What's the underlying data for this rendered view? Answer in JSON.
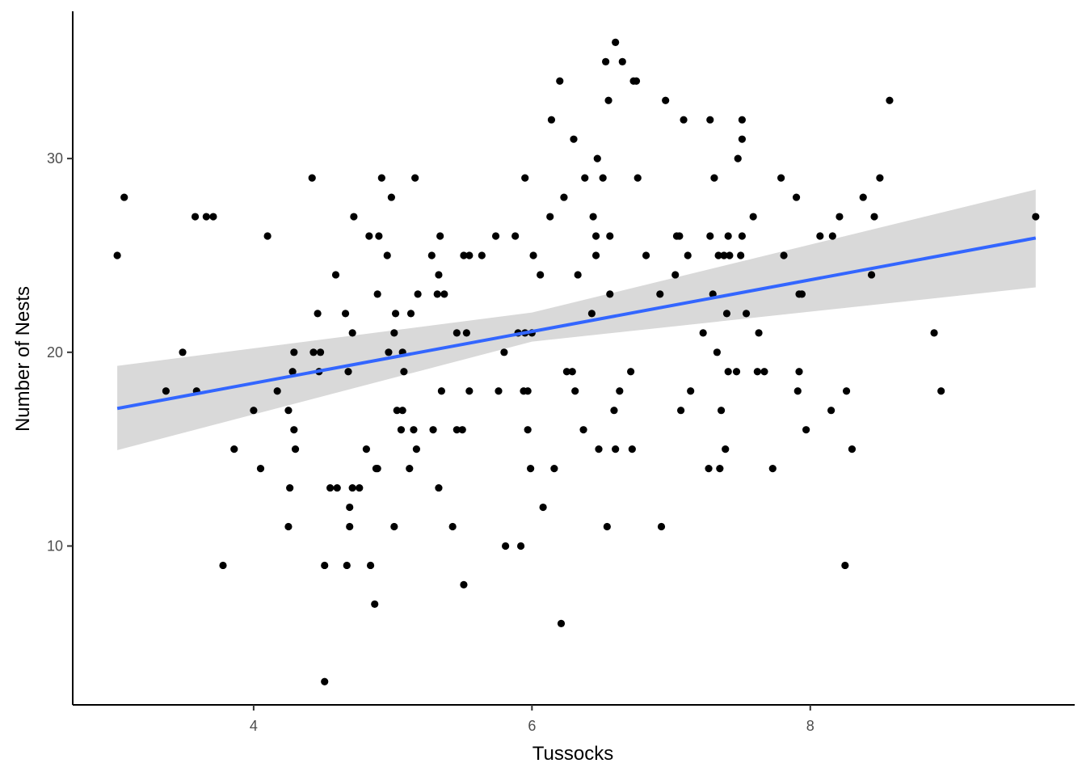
{
  "chart_data": {
    "type": "scatter",
    "xlabel": "Tussocks",
    "ylabel": "Number of Nests",
    "xlim": [
      2.7,
      9.9
    ],
    "ylim": [
      1.8,
      37.6
    ],
    "x_ticks": [
      4,
      6,
      8
    ],
    "y_ticks": [
      10,
      20,
      30
    ],
    "grid": false,
    "colors": {
      "points": "#000000",
      "trend_line": "#3366ff",
      "confidence_band": "#d9d9d9",
      "axis": "#000000",
      "tick_label": "#4d4d4d"
    },
    "trend_line": {
      "method": "lm",
      "points": [
        [
          3.02,
          17.1
        ],
        [
          9.62,
          25.9
        ]
      ],
      "ci_lower": [
        [
          3.02,
          14.95
        ],
        [
          6.0,
          20.55
        ],
        [
          9.62,
          23.35
        ]
      ],
      "ci_upper": [
        [
          3.02,
          19.3
        ],
        [
          6.0,
          22.05
        ],
        [
          9.62,
          28.4
        ]
      ]
    },
    "points": [
      [
        3.02,
        25
      ],
      [
        3.07,
        28
      ],
      [
        3.37,
        18
      ],
      [
        3.49,
        20
      ],
      [
        3.58,
        27
      ],
      [
        3.59,
        18
      ],
      [
        3.66,
        27
      ],
      [
        3.71,
        27
      ],
      [
        3.78,
        9
      ],
      [
        3.86,
        15
      ],
      [
        4.0,
        17
      ],
      [
        4.05,
        14
      ],
      [
        4.1,
        26
      ],
      [
        4.17,
        18
      ],
      [
        4.25,
        17
      ],
      [
        4.25,
        11
      ],
      [
        4.26,
        13
      ],
      [
        4.28,
        19
      ],
      [
        4.29,
        16
      ],
      [
        4.29,
        20
      ],
      [
        4.3,
        15
      ],
      [
        4.42,
        29
      ],
      [
        4.43,
        20
      ],
      [
        4.46,
        22
      ],
      [
        4.47,
        19
      ],
      [
        4.48,
        20
      ],
      [
        4.51,
        9
      ],
      [
        4.51,
        3
      ],
      [
        4.55,
        13
      ],
      [
        4.59,
        24
      ],
      [
        4.6,
        13
      ],
      [
        4.66,
        22
      ],
      [
        4.67,
        9
      ],
      [
        4.68,
        19
      ],
      [
        4.69,
        11
      ],
      [
        4.69,
        12
      ],
      [
        4.71,
        13
      ],
      [
        4.71,
        21
      ],
      [
        4.72,
        27
      ],
      [
        4.76,
        13
      ],
      [
        4.81,
        15
      ],
      [
        4.83,
        26
      ],
      [
        4.84,
        9
      ],
      [
        4.87,
        7
      ],
      [
        4.88,
        14
      ],
      [
        4.89,
        23
      ],
      [
        4.89,
        14
      ],
      [
        4.9,
        26
      ],
      [
        4.92,
        29
      ],
      [
        4.96,
        25
      ],
      [
        4.97,
        20
      ],
      [
        4.99,
        28
      ],
      [
        5.01,
        21
      ],
      [
        5.01,
        11
      ],
      [
        5.02,
        22
      ],
      [
        5.03,
        17
      ],
      [
        5.06,
        16
      ],
      [
        5.07,
        17
      ],
      [
        5.07,
        20
      ],
      [
        5.08,
        19
      ],
      [
        5.12,
        14
      ],
      [
        5.13,
        22
      ],
      [
        5.15,
        16
      ],
      [
        5.16,
        29
      ],
      [
        5.17,
        15
      ],
      [
        5.18,
        23
      ],
      [
        5.28,
        25
      ],
      [
        5.29,
        16
      ],
      [
        5.32,
        23
      ],
      [
        5.33,
        24
      ],
      [
        5.33,
        13
      ],
      [
        5.34,
        26
      ],
      [
        5.35,
        18
      ],
      [
        5.37,
        23
      ],
      [
        5.43,
        11
      ],
      [
        5.46,
        16
      ],
      [
        5.46,
        21
      ],
      [
        5.5,
        16
      ],
      [
        5.51,
        25
      ],
      [
        5.51,
        8
      ],
      [
        5.53,
        21
      ],
      [
        5.55,
        25
      ],
      [
        5.55,
        18
      ],
      [
        5.64,
        25
      ],
      [
        5.74,
        26
      ],
      [
        5.76,
        18
      ],
      [
        5.8,
        20
      ],
      [
        5.81,
        10
      ],
      [
        5.88,
        26
      ],
      [
        5.9,
        21
      ],
      [
        5.92,
        10
      ],
      [
        5.94,
        18
      ],
      [
        5.95,
        29
      ],
      [
        5.95,
        21
      ],
      [
        5.97,
        18
      ],
      [
        5.97,
        16
      ],
      [
        5.99,
        14
      ],
      [
        6.0,
        21
      ],
      [
        6.01,
        25
      ],
      [
        6.06,
        24
      ],
      [
        6.08,
        12
      ],
      [
        6.13,
        27
      ],
      [
        6.14,
        32
      ],
      [
        6.16,
        14
      ],
      [
        6.2,
        34
      ],
      [
        6.21,
        6
      ],
      [
        6.23,
        28
      ],
      [
        6.25,
        19
      ],
      [
        6.29,
        19
      ],
      [
        6.3,
        31
      ],
      [
        6.31,
        18
      ],
      [
        6.33,
        24
      ],
      [
        6.37,
        16
      ],
      [
        6.38,
        29
      ],
      [
        6.43,
        22
      ],
      [
        6.44,
        27
      ],
      [
        6.46,
        26
      ],
      [
        6.46,
        25
      ],
      [
        6.47,
        30
      ],
      [
        6.48,
        15
      ],
      [
        6.51,
        29
      ],
      [
        6.53,
        35
      ],
      [
        6.54,
        11
      ],
      [
        6.55,
        33
      ],
      [
        6.56,
        26
      ],
      [
        6.56,
        23
      ],
      [
        6.59,
        17
      ],
      [
        6.6,
        15
      ],
      [
        6.6,
        36
      ],
      [
        6.63,
        18
      ],
      [
        6.65,
        35
      ],
      [
        6.71,
        19
      ],
      [
        6.72,
        15
      ],
      [
        6.73,
        34
      ],
      [
        6.75,
        34
      ],
      [
        6.76,
        29
      ],
      [
        6.82,
        25
      ],
      [
        6.92,
        23
      ],
      [
        6.93,
        11
      ],
      [
        6.96,
        33
      ],
      [
        7.03,
        24
      ],
      [
        7.04,
        26
      ],
      [
        7.06,
        26
      ],
      [
        7.07,
        17
      ],
      [
        7.09,
        32
      ],
      [
        7.12,
        25
      ],
      [
        7.14,
        18
      ],
      [
        7.23,
        21
      ],
      [
        7.27,
        14
      ],
      [
        7.28,
        26
      ],
      [
        7.28,
        32
      ],
      [
        7.3,
        23
      ],
      [
        7.31,
        29
      ],
      [
        7.33,
        20
      ],
      [
        7.34,
        25
      ],
      [
        7.35,
        14
      ],
      [
        7.36,
        17
      ],
      [
        7.38,
        25
      ],
      [
        7.39,
        15
      ],
      [
        7.4,
        22
      ],
      [
        7.41,
        19
      ],
      [
        7.41,
        26
      ],
      [
        7.42,
        25
      ],
      [
        7.47,
        19
      ],
      [
        7.48,
        30
      ],
      [
        7.5,
        25
      ],
      [
        7.51,
        32
      ],
      [
        7.51,
        31
      ],
      [
        7.51,
        26
      ],
      [
        7.54,
        22
      ],
      [
        7.59,
        27
      ],
      [
        7.62,
        19
      ],
      [
        7.63,
        21
      ],
      [
        7.67,
        19
      ],
      [
        7.73,
        14
      ],
      [
        7.79,
        29
      ],
      [
        7.81,
        25
      ],
      [
        7.9,
        28
      ],
      [
        7.91,
        18
      ],
      [
        7.92,
        19
      ],
      [
        7.92,
        23
      ],
      [
        7.94,
        23
      ],
      [
        7.97,
        16
      ],
      [
        8.07,
        26
      ],
      [
        8.15,
        17
      ],
      [
        8.16,
        26
      ],
      [
        8.21,
        27
      ],
      [
        8.25,
        9
      ],
      [
        8.26,
        18
      ],
      [
        8.3,
        15
      ],
      [
        8.38,
        28
      ],
      [
        8.44,
        24
      ],
      [
        8.46,
        27
      ],
      [
        8.5,
        29
      ],
      [
        8.57,
        33
      ],
      [
        8.89,
        21
      ],
      [
        8.94,
        18
      ],
      [
        9.62,
        27
      ]
    ]
  }
}
